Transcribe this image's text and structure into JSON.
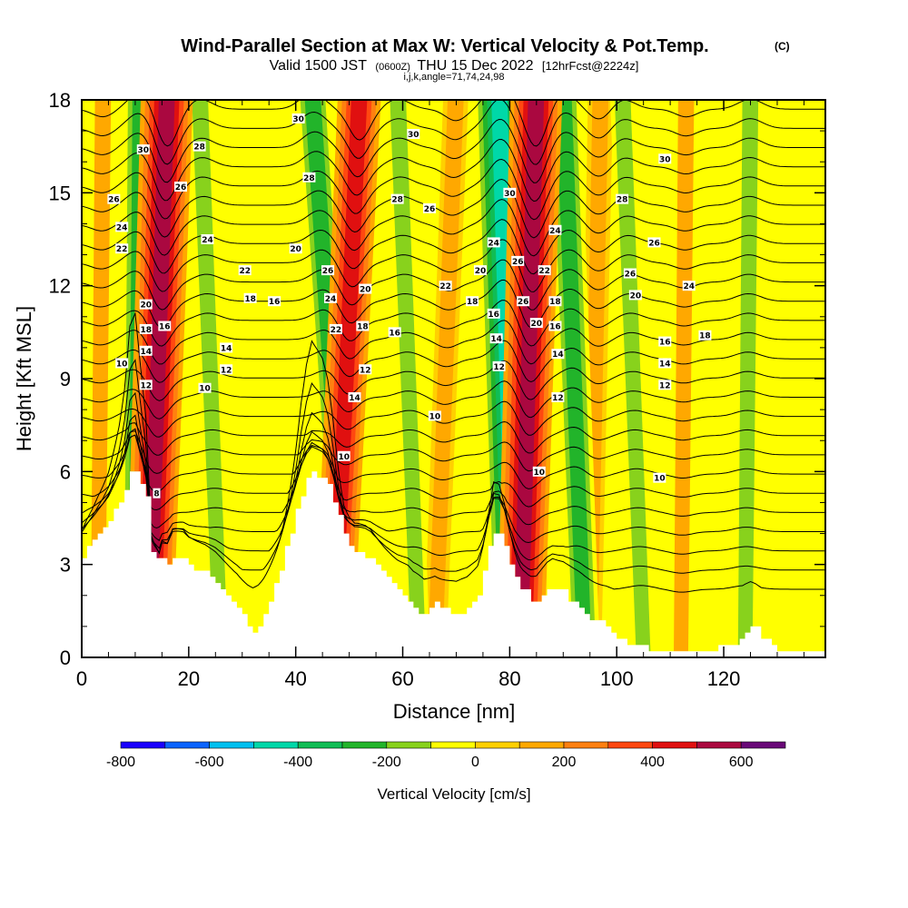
{
  "title": {
    "main": "Wind-Parallel Section at Max W: Vertical Velocity & Pot.Temp.",
    "copyright": "(C)",
    "valid_prefix": "Valid 1500 JST",
    "valid_utc": "(0600Z)",
    "valid_date": "THU 15 Dec 2022",
    "forecast": "[12hrFcst@2224z]",
    "indices": "i,j,k,angle=71,74,24,98"
  },
  "colors": {
    "terrain": "#ffffff",
    "frame": "#000000",
    "isentrope": "#000000"
  },
  "chart_data": {
    "type": "heatmap",
    "xlabel": "Distance [nm]",
    "ylabel": "Height [Kft MSL]",
    "xlim": [
      0,
      139
    ],
    "ylim": [
      0,
      18
    ],
    "x_ticks": [
      0,
      20,
      40,
      60,
      80,
      100,
      120
    ],
    "y_ticks": [
      0,
      3,
      6,
      9,
      12,
      15,
      18
    ],
    "grid": false,
    "field_filled": "Vertical Velocity [cm/s]",
    "field_contoured": "Potential Temperature",
    "colorbar": {
      "title": "Vertical Velocity [cm/s]",
      "position": "bottom",
      "levels": [
        -800,
        -700,
        -600,
        -500,
        -400,
        -300,
        -200,
        -100,
        0,
        100,
        200,
        300,
        400,
        500,
        600,
        700
      ],
      "colors": [
        "#1a00ff",
        "#0a64ff",
        "#00c0f0",
        "#00d8a8",
        "#10bd55",
        "#22b42a",
        "#88d21c",
        "#ffff00",
        "#ffd000",
        "#ffa800",
        "#ff8010",
        "#ff4810",
        "#e01010",
        "#aa0840",
        "#6a0878"
      ],
      "tick_labels": [
        -800,
        -600,
        -400,
        -200,
        0,
        200,
        400,
        600
      ]
    },
    "terrain_profile": {
      "x": [
        0,
        1,
        3,
        5,
        7,
        8,
        9,
        10,
        12,
        12.5,
        13,
        14,
        14.5,
        15,
        16,
        17,
        19,
        20,
        23,
        25,
        27,
        29,
        30,
        31,
        32,
        33,
        34,
        35,
        36,
        37,
        38,
        39,
        40,
        41,
        42,
        43,
        44,
        45,
        46,
        47,
        48,
        49,
        50,
        51,
        53,
        54,
        55,
        57,
        59,
        61,
        62,
        64,
        66,
        69,
        70,
        72,
        74,
        75,
        76,
        77,
        78,
        79,
        80,
        81,
        82,
        83,
        84,
        85,
        86,
        87,
        88,
        90,
        92,
        94,
        96,
        98,
        100,
        102,
        104,
        106,
        110,
        114,
        118,
        122,
        123,
        124,
        125,
        126,
        127,
        128,
        129,
        130,
        131,
        139
      ],
      "y": [
        3.2,
        3.5,
        4.0,
        4.4,
        5.0,
        5.4,
        6.0,
        6.1,
        5.2,
        4.5,
        3.4,
        3.1,
        2.9,
        3.2,
        3.0,
        3.3,
        3.2,
        3.0,
        2.7,
        2.4,
        2.0,
        1.6,
        1.3,
        1.0,
        0.8,
        1.0,
        1.4,
        1.9,
        2.4,
        2.9,
        3.5,
        4.1,
        4.7,
        5.3,
        5.7,
        5.9,
        5.8,
        5.7,
        5.5,
        5.1,
        4.5,
        3.9,
        3.6,
        3.4,
        3.3,
        3.2,
        3.0,
        2.6,
        2.2,
        1.9,
        1.6,
        1.3,
        1.7,
        1.4,
        1.3,
        1.5,
        2.0,
        2.7,
        3.5,
        4.1,
        4.0,
        3.6,
        3.0,
        2.5,
        2.2,
        2.1,
        1.9,
        1.8,
        2.0,
        2.2,
        2.3,
        2.1,
        1.7,
        1.4,
        1.2,
        1.0,
        0.6,
        0.4,
        0.35,
        0.3,
        0.3,
        0.3,
        0.3,
        0.4,
        0.6,
        0.8,
        1.0,
        0.9,
        0.7,
        0.5,
        0.35,
        0.3,
        0.3,
        0.3
      ]
    },
    "updraft_bands": [
      {
        "x_top": 16,
        "x_bottom": 12.5,
        "peak_cm_s": 500
      },
      {
        "x_top": 52,
        "x_bottom": 47,
        "peak_cm_s": 400
      },
      {
        "x_top": 85,
        "x_bottom": 82,
        "peak_cm_s": 500
      },
      {
        "x_top": 70,
        "x_bottom": 66,
        "peak_cm_s": 150
      },
      {
        "x_top": 97,
        "x_bottom": 95,
        "peak_cm_s": 150
      },
      {
        "x_top": 4,
        "x_bottom": 3,
        "peak_cm_s": 100
      },
      {
        "x_top": 113,
        "x_bottom": 112,
        "peak_cm_s": 100
      }
    ],
    "downdraft_bands": [
      {
        "x_top": 11,
        "x_bottom": 10,
        "peak_cm_s": -250
      },
      {
        "x_top": 22,
        "x_bottom": 26,
        "peak_cm_s": -150
      },
      {
        "x_top": 43,
        "x_bottom": 50,
        "peak_cm_s": -250
      },
      {
        "x_top": 59,
        "x_bottom": 63,
        "peak_cm_s": -150
      },
      {
        "x_top": 78,
        "x_bottom": 81,
        "peak_cm_s": -450
      },
      {
        "x_top": 90,
        "x_bottom": 94,
        "peak_cm_s": -250
      },
      {
        "x_top": 101,
        "x_bottom": 105,
        "peak_cm_s": -150
      },
      {
        "x_top": 125,
        "x_bottom": 124,
        "peak_cm_s": -150
      }
    ],
    "isentrope_labels": [
      {
        "text": "30",
        "x": 11.5,
        "y": 16.4
      },
      {
        "text": "28",
        "x": 22,
        "y": 16.5
      },
      {
        "text": "26",
        "x": 18.5,
        "y": 15.2
      },
      {
        "text": "26",
        "x": 6,
        "y": 14.8
      },
      {
        "text": "24",
        "x": 7.5,
        "y": 13.9
      },
      {
        "text": "22",
        "x": 7.5,
        "y": 13.2
      },
      {
        "text": "24",
        "x": 23.5,
        "y": 13.5
      },
      {
        "text": "22",
        "x": 30.5,
        "y": 12.5
      },
      {
        "text": "20",
        "x": 40,
        "y": 13.2
      },
      {
        "text": "18",
        "x": 31.5,
        "y": 11.6
      },
      {
        "text": "16",
        "x": 36,
        "y": 11.5
      },
      {
        "text": "20",
        "x": 12,
        "y": 11.4
      },
      {
        "text": "18",
        "x": 12,
        "y": 10.6
      },
      {
        "text": "16",
        "x": 15.5,
        "y": 10.7
      },
      {
        "text": "14",
        "x": 12,
        "y": 9.9
      },
      {
        "text": "10",
        "x": 7.5,
        "y": 9.5
      },
      {
        "text": "12",
        "x": 12,
        "y": 8.8
      },
      {
        "text": "14",
        "x": 27,
        "y": 10.0
      },
      {
        "text": "12",
        "x": 27,
        "y": 9.3
      },
      {
        "text": "10",
        "x": 23,
        "y": 8.7
      },
      {
        "text": "8",
        "x": 14,
        "y": 5.3
      },
      {
        "text": "30",
        "x": 40.5,
        "y": 17.4
      },
      {
        "text": "28",
        "x": 42.5,
        "y": 15.5
      },
      {
        "text": "26",
        "x": 46,
        "y": 12.5
      },
      {
        "text": "24",
        "x": 46.5,
        "y": 11.6
      },
      {
        "text": "22",
        "x": 47.5,
        "y": 10.6
      },
      {
        "text": "20",
        "x": 53,
        "y": 11.9
      },
      {
        "text": "18",
        "x": 52.5,
        "y": 10.7
      },
      {
        "text": "16",
        "x": 58.5,
        "y": 10.5
      },
      {
        "text": "12",
        "x": 53,
        "y": 9.3
      },
      {
        "text": "14",
        "x": 51,
        "y": 8.4
      },
      {
        "text": "10",
        "x": 49,
        "y": 6.5
      },
      {
        "text": "30",
        "x": 62,
        "y": 16.9
      },
      {
        "text": "28",
        "x": 59,
        "y": 14.8
      },
      {
        "text": "26",
        "x": 65,
        "y": 14.5
      },
      {
        "text": "22",
        "x": 68,
        "y": 12.0
      },
      {
        "text": "20",
        "x": 74.5,
        "y": 12.5
      },
      {
        "text": "18",
        "x": 73,
        "y": 11.5
      },
      {
        "text": "10",
        "x": 66,
        "y": 7.8
      },
      {
        "text": "30",
        "x": 80,
        "y": 15.0
      },
      {
        "text": "24",
        "x": 77,
        "y": 13.4
      },
      {
        "text": "26",
        "x": 81.5,
        "y": 12.8
      },
      {
        "text": "16",
        "x": 77,
        "y": 11.1
      },
      {
        "text": "14",
        "x": 77.5,
        "y": 10.3
      },
      {
        "text": "12",
        "x": 78,
        "y": 9.4
      },
      {
        "text": "22",
        "x": 86.5,
        "y": 12.5
      },
      {
        "text": "26",
        "x": 82.5,
        "y": 11.5
      },
      {
        "text": "20",
        "x": 85,
        "y": 10.8
      },
      {
        "text": "18",
        "x": 88.5,
        "y": 11.5
      },
      {
        "text": "16",
        "x": 88.5,
        "y": 10.7
      },
      {
        "text": "14",
        "x": 89,
        "y": 9.8
      },
      {
        "text": "12",
        "x": 89,
        "y": 8.4
      },
      {
        "text": "10",
        "x": 85.5,
        "y": 6.0
      },
      {
        "text": "24",
        "x": 88.5,
        "y": 13.8
      },
      {
        "text": "30",
        "x": 109,
        "y": 16.1
      },
      {
        "text": "28",
        "x": 101,
        "y": 14.8
      },
      {
        "text": "26",
        "x": 107,
        "y": 13.4
      },
      {
        "text": "26",
        "x": 102.5,
        "y": 12.4
      },
      {
        "text": "20",
        "x": 103.5,
        "y": 11.7
      },
      {
        "text": "24",
        "x": 113.5,
        "y": 12.0
      },
      {
        "text": "16",
        "x": 109,
        "y": 10.2
      },
      {
        "text": "18",
        "x": 116.5,
        "y": 10.4
      },
      {
        "text": "14",
        "x": 109,
        "y": 9.5
      },
      {
        "text": "12",
        "x": 109,
        "y": 8.8
      },
      {
        "text": "10",
        "x": 108,
        "y": 5.8
      }
    ]
  }
}
